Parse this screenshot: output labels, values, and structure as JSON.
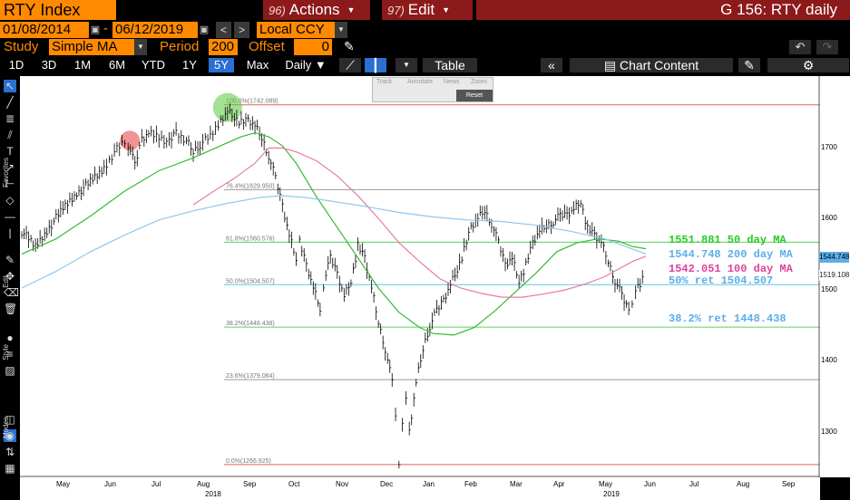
{
  "header": {
    "ticker": "RTY Index",
    "actions": {
      "num": "96)",
      "label": "Actions"
    },
    "edit": {
      "num": "97)",
      "label": "Edit"
    },
    "title": "G 156: RTY daily"
  },
  "dates": {
    "start": "01/08/2014",
    "sep": "-",
    "end": "06/12/2019"
  },
  "currency": "Local CCY",
  "study": {
    "label": "Study",
    "value": "Simple MA",
    "period_label": "Period",
    "period_value": "200",
    "offset_label": "Offset",
    "offset_value": "0"
  },
  "periods": [
    "1D",
    "3D",
    "1M",
    "6M",
    "YTD",
    "1Y",
    "5Y",
    "Max"
  ],
  "active_period": "5Y",
  "toolbar": {
    "daily": "Daily ▼",
    "table": "Table",
    "chart_content": "Chart Content"
  },
  "float_toolbar": {
    "track": "Track",
    "annotate": "Annotate",
    "news": "News",
    "zoom": "Zoom",
    "reset": "Reset"
  },
  "side_labels": {
    "favorites": "Favorites",
    "edit": "Edit",
    "style": "Style",
    "modes": "Modes"
  },
  "y_ticks": [
    "1700",
    "1600",
    "1500",
    "1400",
    "1300"
  ],
  "x_ticks": [
    "May",
    "Jun",
    "Jul",
    "Aug",
    "Sep",
    "Oct",
    "Nov",
    "Dec",
    "Jan",
    "Feb",
    "Mar",
    "Apr",
    "May",
    "Jun",
    "Jul",
    "Aug",
    "Sep"
  ],
  "x_years": [
    "2018",
    "2019"
  ],
  "fib_levels": [
    {
      "label": "100.0%(1742.089)",
      "value": 1742.089,
      "color": "#e06060"
    },
    {
      "label": "76.4%(1629.950)",
      "value": 1629.95,
      "color": "#9a9a9a"
    },
    {
      "label": "61.8%(1560.576)",
      "value": 1560.576,
      "color": "#5cd15c"
    },
    {
      "label": "50.0%(1504.507)",
      "value": 1504.507,
      "color": "#5bc8e8"
    },
    {
      "label": "38.2%(1448.438)",
      "value": 1448.438,
      "color": "#5cd15c"
    },
    {
      "label": "23.6%(1379.064)",
      "value": 1379.064,
      "color": "#9a9a9a"
    },
    {
      "label": "0.0%(1266.925)",
      "value": 1266.925,
      "color": "#e06060"
    }
  ],
  "annotations": [
    {
      "text": "1551.881 50 day MA",
      "color": "#22cc22"
    },
    {
      "text": "1544.748 200 day MA",
      "color": "#5baee8"
    },
    {
      "text": "1542.051 100 day MA",
      "color": "#e0409a"
    },
    {
      "text": "50% ret 1504.507",
      "color": "#5baee8"
    },
    {
      "text": "38.2% ret 1448.438",
      "color": "#5baee8"
    }
  ],
  "last_labels": [
    {
      "text": "1544.748",
      "color": "#5baee8"
    },
    {
      "text": "1519.108",
      "color": "#222222"
    }
  ],
  "colors": {
    "accent": "#ff8a00",
    "header_red": "#8c1a1a",
    "active_blue": "#2a6fd1"
  },
  "chart_data": {
    "type": "line",
    "ylim": [
      1250,
      1780
    ],
    "series": [
      {
        "name": "",
        "kind": "price",
        "color": "#000000",
        "points": [
          [
            0,
            1575
          ],
          [
            4,
            1555
          ],
          [
            8,
            1580
          ],
          [
            12,
            1605
          ],
          [
            16,
            1625
          ],
          [
            20,
            1640
          ],
          [
            24,
            1658
          ],
          [
            27,
            1680
          ],
          [
            30,
            1693
          ],
          [
            31,
            1690
          ],
          [
            33,
            1662
          ],
          [
            35,
            1698
          ],
          [
            37,
            1705
          ],
          [
            40,
            1700
          ],
          [
            43,
            1692
          ],
          [
            45,
            1706
          ],
          [
            48,
            1695
          ],
          [
            50,
            1680
          ],
          [
            52,
            1690
          ],
          [
            55,
            1700
          ],
          [
            58,
            1722
          ],
          [
            60,
            1734
          ],
          [
            62,
            1726
          ],
          [
            64,
            1718
          ],
          [
            66,
            1722
          ],
          [
            68,
            1714
          ],
          [
            70,
            1698
          ],
          [
            72,
            1675
          ],
          [
            74,
            1645
          ],
          [
            76,
            1610
          ],
          [
            78,
            1570
          ],
          [
            80,
            1540
          ],
          [
            81,
            1560
          ],
          [
            83,
            1530
          ],
          [
            85,
            1500
          ],
          [
            87,
            1472
          ],
          [
            88,
            1505
          ],
          [
            90,
            1540
          ],
          [
            92,
            1520
          ],
          [
            94,
            1490
          ],
          [
            96,
            1510
          ],
          [
            98,
            1555
          ],
          [
            100,
            1540
          ],
          [
            102,
            1500
          ],
          [
            104,
            1455
          ],
          [
            106,
            1420
          ],
          [
            108,
            1375
          ],
          [
            109,
            1330
          ],
          [
            110,
            1268
          ],
          [
            111,
            1325
          ],
          [
            112,
            1350
          ],
          [
            113,
            1310
          ],
          [
            115,
            1375
          ],
          [
            117,
            1420
          ],
          [
            119,
            1450
          ],
          [
            121,
            1470
          ],
          [
            123,
            1485
          ],
          [
            125,
            1505
          ],
          [
            127,
            1525
          ],
          [
            129,
            1550
          ],
          [
            131,
            1580
          ],
          [
            133,
            1592
          ],
          [
            135,
            1602
          ],
          [
            137,
            1585
          ],
          [
            139,
            1560
          ],
          [
            141,
            1532
          ],
          [
            143,
            1540
          ],
          [
            145,
            1510
          ],
          [
            147,
            1530
          ],
          [
            149,
            1560
          ],
          [
            151,
            1575
          ],
          [
            153,
            1582
          ],
          [
            155,
            1588
          ],
          [
            157,
            1595
          ],
          [
            159,
            1598
          ],
          [
            161,
            1605
          ],
          [
            163,
            1615
          ],
          [
            165,
            1578
          ],
          [
            167,
            1570
          ],
          [
            169,
            1560
          ],
          [
            171,
            1535
          ],
          [
            173,
            1510
          ],
          [
            175,
            1490
          ],
          [
            177,
            1470
          ],
          [
            178,
            1480
          ],
          [
            179,
            1500
          ],
          [
            181,
            1510
          ],
          [
            182,
            1520
          ]
        ]
      },
      {
        "name": "50 day MA",
        "kind": "ma",
        "color": "#33bb33",
        "points": [
          [
            0,
            1545
          ],
          [
            10,
            1565
          ],
          [
            20,
            1595
          ],
          [
            30,
            1628
          ],
          [
            40,
            1655
          ],
          [
            50,
            1672
          ],
          [
            60,
            1692
          ],
          [
            64,
            1700
          ],
          [
            68,
            1705
          ],
          [
            72,
            1700
          ],
          [
            76,
            1688
          ],
          [
            80,
            1665
          ],
          [
            86,
            1620
          ],
          [
            92,
            1580
          ],
          [
            98,
            1540
          ],
          [
            104,
            1500
          ],
          [
            110,
            1468
          ],
          [
            116,
            1448
          ],
          [
            120,
            1440
          ],
          [
            126,
            1438
          ],
          [
            132,
            1448
          ],
          [
            138,
            1470
          ],
          [
            144,
            1495
          ],
          [
            150,
            1520
          ],
          [
            156,
            1548
          ],
          [
            162,
            1560
          ],
          [
            168,
            1565
          ],
          [
            174,
            1562
          ],
          [
            178,
            1555
          ],
          [
            182,
            1552
          ]
        ]
      },
      {
        "name": "100 day MA",
        "kind": "ma",
        "color": "#e87aa8",
        "points": [
          [
            50,
            1610
          ],
          [
            56,
            1628
          ],
          [
            62,
            1645
          ],
          [
            68,
            1665
          ],
          [
            72,
            1685
          ],
          [
            76,
            1685
          ],
          [
            80,
            1680
          ],
          [
            86,
            1668
          ],
          [
            92,
            1648
          ],
          [
            98,
            1622
          ],
          [
            104,
            1592
          ],
          [
            110,
            1560
          ],
          [
            116,
            1535
          ],
          [
            122,
            1512
          ],
          [
            128,
            1500
          ],
          [
            134,
            1493
          ],
          [
            140,
            1488
          ],
          [
            146,
            1488
          ],
          [
            152,
            1492
          ],
          [
            158,
            1497
          ],
          [
            164,
            1505
          ],
          [
            170,
            1515
          ],
          [
            174,
            1525
          ],
          [
            178,
            1535
          ],
          [
            182,
            1542
          ]
        ]
      },
      {
        "name": "200 day MA",
        "kind": "ma",
        "color": "#8fc7ef",
        "points": [
          [
            0,
            1500
          ],
          [
            10,
            1522
          ],
          [
            20,
            1548
          ],
          [
            30,
            1570
          ],
          [
            40,
            1590
          ],
          [
            50,
            1602
          ],
          [
            60,
            1612
          ],
          [
            70,
            1620
          ],
          [
            76,
            1622
          ],
          [
            82,
            1620
          ],
          [
            90,
            1615
          ],
          [
            100,
            1608
          ],
          [
            110,
            1600
          ],
          [
            120,
            1594
          ],
          [
            130,
            1590
          ],
          [
            140,
            1588
          ],
          [
            150,
            1583
          ],
          [
            160,
            1575
          ],
          [
            170,
            1565
          ],
          [
            176,
            1555
          ],
          [
            182,
            1545
          ]
        ]
      }
    ]
  }
}
